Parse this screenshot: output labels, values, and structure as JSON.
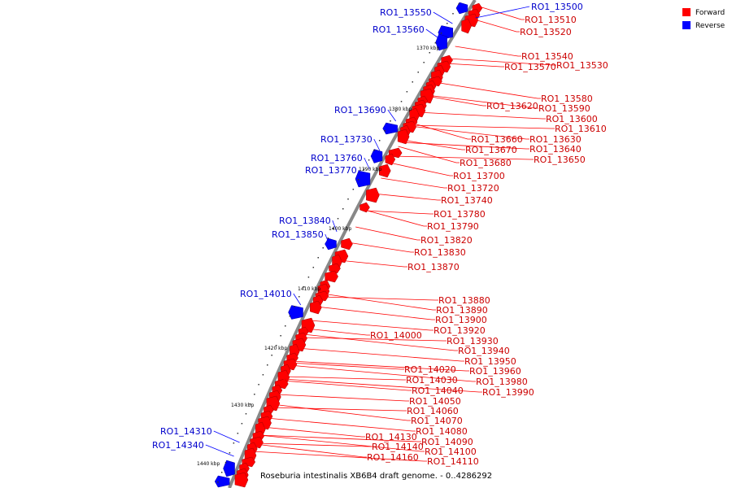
{
  "colors": {
    "forward": "#ff0000",
    "reverse": "#0000ff",
    "forward_dark": "#a00000",
    "reverse_dark": "#0000a0",
    "forward_label": "#cc0000",
    "reverse_label": "#0000cc",
    "backbone": "#888888"
  },
  "legend": {
    "forward": "Forward",
    "reverse": "Reverse"
  },
  "caption": "Roseburia intestinalis XB6B4 draft genome. - 0..4286292",
  "scale_labels": [
    "1370 kbp",
    "1380 kbp",
    "1390 kbp",
    "1400 kbp",
    "1410 kbp",
    "1420 kbp",
    "1430 kbp",
    "1440 kbp"
  ],
  "forward_labels": [
    "RO1_13510",
    "RO1_13520",
    "RO1_13540",
    "RO1_13530",
    "RO1_13570",
    "RO1_13580",
    "RO1_13590",
    "RO1_13620",
    "RO1_13600",
    "RO1_13610",
    "RO1_13660",
    "RO1_13630",
    "RO1_13670",
    "RO1_13640",
    "RO1_13650",
    "RO1_13680",
    "RO1_13700",
    "RO1_13720",
    "RO1_13740",
    "RO1_13780",
    "RO1_13790",
    "RO1_13820",
    "RO1_13830",
    "RO1_13870",
    "RO1_13880",
    "RO1_13890",
    "RO1_13900",
    "RO1_13920",
    "RO1_14000",
    "RO1_13930",
    "RO1_13940",
    "RO1_13950",
    "RO1_13960",
    "RO1_14020",
    "RO1_14030",
    "RO1_13980",
    "RO1_13990",
    "RO1_14040",
    "RO1_14050",
    "RO1_14060",
    "RO1_14070",
    "RO1_14080",
    "RO1_14130",
    "RO1_14090",
    "RO1_14140",
    "RO1_14100",
    "RO1_14160",
    "RO1_14110"
  ],
  "reverse_labels": [
    "RO1_13500",
    "RO1_13550",
    "RO1_13560",
    "RO1_13690",
    "RO1_13730",
    "RO1_13760",
    "RO1_13770",
    "RO1_13840",
    "RO1_13850",
    "RO1_14010",
    "RO1_14310",
    "RO1_14340"
  ]
}
